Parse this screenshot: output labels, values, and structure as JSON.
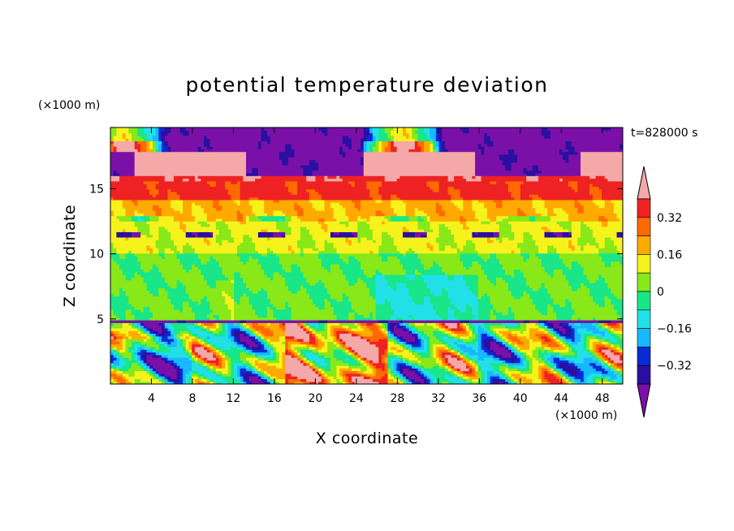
{
  "chart_data": {
    "type": "heatmap",
    "title": "potential temperature deviation",
    "xlabel": "X coordinate",
    "ylabel": "Z coordinate",
    "x_unit": "(×1000 m)",
    "y_unit": "(×1000 m)",
    "time_label": "t=828000 s",
    "xlim": [
      0,
      50
    ],
    "ylim": [
      0,
      19.7
    ],
    "x_ticks": [
      4,
      8,
      12,
      16,
      20,
      24,
      28,
      32,
      36,
      40,
      44,
      48
    ],
    "y_ticks": [
      5,
      10,
      15
    ],
    "colorbar": {
      "levels": [
        -0.4,
        -0.32,
        -0.24,
        -0.16,
        -0.08,
        0,
        0.08,
        0.16,
        0.24,
        0.32,
        0.4
      ],
      "labeled_ticks": [
        "0.32",
        "0.16",
        "0",
        "−0.16",
        "−0.32"
      ],
      "labeled_values": [
        0.32,
        0.16,
        0,
        -0.16,
        -0.32
      ],
      "colors": [
        "#7a10a8",
        "#2a10a0",
        "#0a2ad8",
        "#18b8ff",
        "#22e0e8",
        "#18e688",
        "#88e818",
        "#f6f21c",
        "#ffaa00",
        "#ff6a00",
        "#ee2222",
        "#f4a8a8"
      ],
      "extend": "both"
    },
    "layers": [
      {
        "z_range": [
          17.8,
          19.7
        ],
        "description_value": -0.45
      },
      {
        "z_range": [
          16.0,
          17.8
        ],
        "description_value": 0.45
      },
      {
        "z_range": [
          14.2,
          16.0
        ],
        "description_value": 0.34
      },
      {
        "z_range": [
          12.5,
          14.2
        ],
        "description_value": 0.2
      },
      {
        "z_range": [
          10.0,
          12.5
        ],
        "description_value": 0.08
      },
      {
        "z_range": [
          5.0,
          10.0
        ],
        "description_value": 0.0
      },
      {
        "z_range": [
          0.0,
          5.0
        ],
        "description_value": -0.3
      }
    ]
  }
}
